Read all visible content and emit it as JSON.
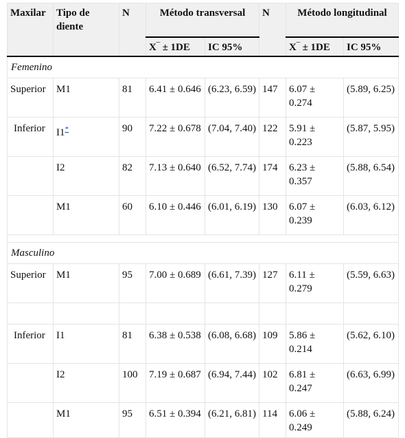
{
  "headers": {
    "maxilar": "Maxilar",
    "tipo": "Tipo de diente",
    "n1": "N",
    "transversal": "Método transversal",
    "n2": "N",
    "longitudinal": "Método longitudinal",
    "mean_sd_1": "X‾ ± 1DE",
    "ci_1": "IC 95%",
    "mean_sd_2": "X‾ ± 1DE",
    "ci_2": "IC 95%"
  },
  "sections": [
    {
      "label": "Femenino",
      "rows": [
        {
          "maxilar": "Superior",
          "tipo": "M1",
          "footnote": "",
          "n1": "81",
          "m1": "6.41 ± 0.646",
          "ci1": "(6.23, 6.59)",
          "n2": "147",
          "m2": "6.07 ± 0.274",
          "ci2": "(5.89, 6.25)"
        },
        {
          "maxilar": "Inferior",
          "tipo": "I1",
          "footnote": "*",
          "n1": "90",
          "m1": "7.22 ± 0.678",
          "ci1": "(7.04, 7.40)",
          "n2": "122",
          "m2": "5.91 ± 0.223",
          "ci2": "(5.87, 5.95)"
        },
        {
          "maxilar": "",
          "tipo": "I2",
          "footnote": "",
          "n1": "82",
          "m1": "7.13 ± 0.640",
          "ci1": "(6.52, 7.74)",
          "n2": "174",
          "m2": "6.23 ± 0.357",
          "ci2": "(5.88, 6.54)"
        },
        {
          "maxilar": "",
          "tipo": "M1",
          "footnote": "",
          "n1": "60",
          "m1": "6.10 ± 0.446",
          "ci1": "(6.01, 6.19)",
          "n2": "130",
          "m2": "6.07 ± 0.239",
          "ci2": "(6.03, 6.12)"
        }
      ]
    },
    {
      "label": "Masculino",
      "rows": [
        {
          "maxilar": "Superior",
          "tipo": "M1",
          "footnote": "",
          "n1": "95",
          "m1": "7.00 ± 0.689",
          "ci1": "(6.61, 7.39)",
          "n2": "127",
          "m2": "6.11 ± 0.279",
          "ci2": "(5.59, 6.63)"
        },
        {
          "maxilar": "Inferior",
          "tipo": "I1",
          "footnote": "",
          "n1": "81",
          "m1": "6.38 ± 0.538",
          "ci1": "(6.08, 6.68)",
          "n2": "109",
          "m2": "5.86 ± 0.214",
          "ci2": "(5.62, 6.10)"
        },
        {
          "maxilar": "",
          "tipo": "I2",
          "footnote": "",
          "n1": "100",
          "m1": "7.19 ± 0.687",
          "ci1": "(6.94, 7.44)",
          "n2": "102",
          "m2": "6.81 ± 0.247",
          "ci2": "(6.63, 6.99)"
        },
        {
          "maxilar": "",
          "tipo": "M1",
          "footnote": "",
          "n1": "95",
          "m1": "6.51 ± 0.394",
          "ci1": "(6.21, 6.81)",
          "n2": "114",
          "m2": "6.06 ± 0.249",
          "ci2": "(5.88, 6.24)"
        }
      ]
    }
  ]
}
